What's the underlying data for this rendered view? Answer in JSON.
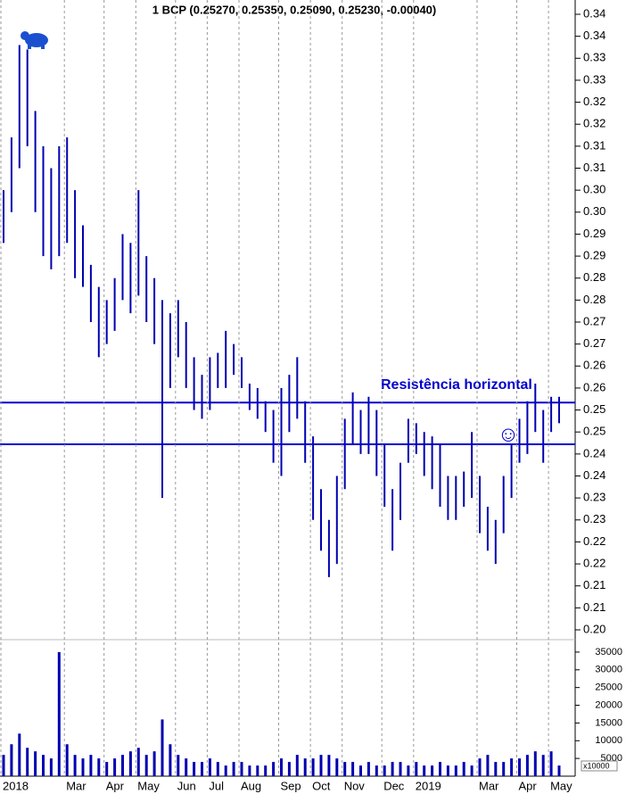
{
  "chart_data": [
    {
      "type": "hilo",
      "title": "1 BCP (0.25270, 0.25350, 0.25090, 0.25230, -0.00040)",
      "color": "#0000b0",
      "high": [
        0.3,
        0.312,
        0.333,
        0.332,
        0.318,
        0.31,
        0.305,
        0.31,
        0.312,
        0.3,
        0.292,
        0.283,
        0.278,
        0.275,
        0.28,
        0.29,
        0.288,
        0.3,
        0.285,
        0.28,
        0.275,
        0.272,
        0.275,
        0.27,
        0.262,
        0.258,
        0.262,
        0.263,
        0.268,
        0.265,
        0.262,
        0.256,
        0.255,
        0.252,
        0.25,
        0.255,
        0.258,
        0.262,
        0.252,
        0.244,
        0.232,
        0.225,
        0.235,
        0.248,
        0.254,
        0.25,
        0.253,
        0.25,
        0.242,
        0.232,
        0.238,
        0.248,
        0.247,
        0.245,
        0.244,
        0.242,
        0.235,
        0.235,
        0.236,
        0.245,
        0.235,
        0.228,
        0.225,
        0.235,
        0.242,
        0.248,
        0.252,
        0.256,
        0.25,
        0.253,
        0.253
      ],
      "low": [
        0.288,
        0.295,
        0.305,
        0.31,
        0.295,
        0.285,
        0.282,
        0.285,
        0.288,
        0.28,
        0.278,
        0.27,
        0.262,
        0.265,
        0.268,
        0.275,
        0.272,
        0.276,
        0.27,
        0.265,
        0.23,
        0.255,
        0.262,
        0.255,
        0.25,
        0.248,
        0.25,
        0.255,
        0.255,
        0.258,
        0.255,
        0.25,
        0.248,
        0.245,
        0.238,
        0.235,
        0.245,
        0.248,
        0.238,
        0.225,
        0.218,
        0.212,
        0.215,
        0.232,
        0.242,
        0.24,
        0.24,
        0.235,
        0.228,
        0.218,
        0.225,
        0.238,
        0.24,
        0.235,
        0.232,
        0.228,
        0.225,
        0.225,
        0.228,
        0.23,
        0.222,
        0.218,
        0.215,
        0.222,
        0.23,
        0.238,
        0.24,
        0.245,
        0.238,
        0.245,
        0.247
      ],
      "ylim": [
        0.2,
        0.34
      ],
      "yticks": [
        0.34,
        {
          "value": 0.335,
          "label": "0.34"
        },
        0.33,
        {
          "value": 0.325,
          "label": "0.33"
        },
        0.32,
        {
          "value": 0.315,
          "label": "0.32"
        },
        0.31,
        {
          "value": 0.305,
          "label": "0.31"
        },
        {
          "value": 0.3,
          "label": "0.30"
        },
        {
          "value": 0.295,
          "label": "0.30"
        },
        0.29,
        {
          "value": 0.285,
          "label": "0.29"
        },
        0.28,
        {
          "value": 0.275,
          "label": "0.28"
        },
        0.27,
        {
          "value": 0.265,
          "label": "0.27"
        },
        0.26,
        {
          "value": 0.255,
          "label": "0.26"
        },
        0.25,
        {
          "value": 0.245,
          "label": "0.25"
        },
        0.24,
        {
          "value": 0.235,
          "label": "0.24"
        },
        0.23,
        {
          "value": 0.225,
          "label": "0.23"
        },
        0.22,
        {
          "value": 0.215,
          "label": "0.22"
        },
        0.21,
        {
          "value": 0.205,
          "label": "0.21"
        },
        {
          "value": 0.2,
          "label": "0.20"
        }
      ],
      "hlines": [
        0.2517,
        0.2422
      ],
      "hline_color": "#0000cc",
      "annotations": [
        "Resistência horizontal",
        "☺"
      ]
    },
    {
      "type": "bar",
      "color": "#0000b0",
      "unit": "x10000",
      "categories": [
        "2018",
        null,
        null,
        null,
        null,
        null,
        null,
        null,
        "Mar",
        null,
        null,
        null,
        null,
        "Apr",
        null,
        null,
        null,
        "May",
        null,
        null,
        null,
        null,
        "Jun",
        null,
        null,
        null,
        "Jul",
        null,
        null,
        null,
        "Aug",
        null,
        null,
        null,
        null,
        "Sep",
        null,
        null,
        null,
        "Oct",
        null,
        null,
        null,
        "Nov",
        null,
        null,
        null,
        null,
        "Dec",
        null,
        null,
        null,
        "2019",
        null,
        null,
        null,
        null,
        null,
        null,
        null,
        "Mar",
        null,
        null,
        null,
        null,
        "Apr",
        null,
        null,
        null,
        "May",
        null
      ],
      "values": [
        6000,
        9000,
        12000,
        8000,
        7000,
        6000,
        5000,
        35000,
        9000,
        6000,
        5000,
        6000,
        5000,
        4000,
        5000,
        6000,
        7000,
        8000,
        6000,
        7000,
        16000,
        9000,
        6000,
        5000,
        4000,
        4000,
        5000,
        4000,
        3000,
        4000,
        4000,
        3000,
        3000,
        3000,
        4000,
        5000,
        4000,
        6000,
        5000,
        5000,
        6000,
        6000,
        5000,
        4000,
        4000,
        3000,
        4000,
        3000,
        3000,
        4000,
        4000,
        3000,
        4000,
        3000,
        3000,
        4000,
        3000,
        3000,
        4000,
        3000,
        5000,
        6000,
        4000,
        4000,
        5000,
        5000,
        6000,
        7000,
        6000,
        7000,
        3000
      ],
      "ylim": [
        0,
        37500
      ],
      "yticks": [
        5000,
        10000,
        15000,
        20000,
        25000,
        30000,
        35000
      ]
    }
  ]
}
